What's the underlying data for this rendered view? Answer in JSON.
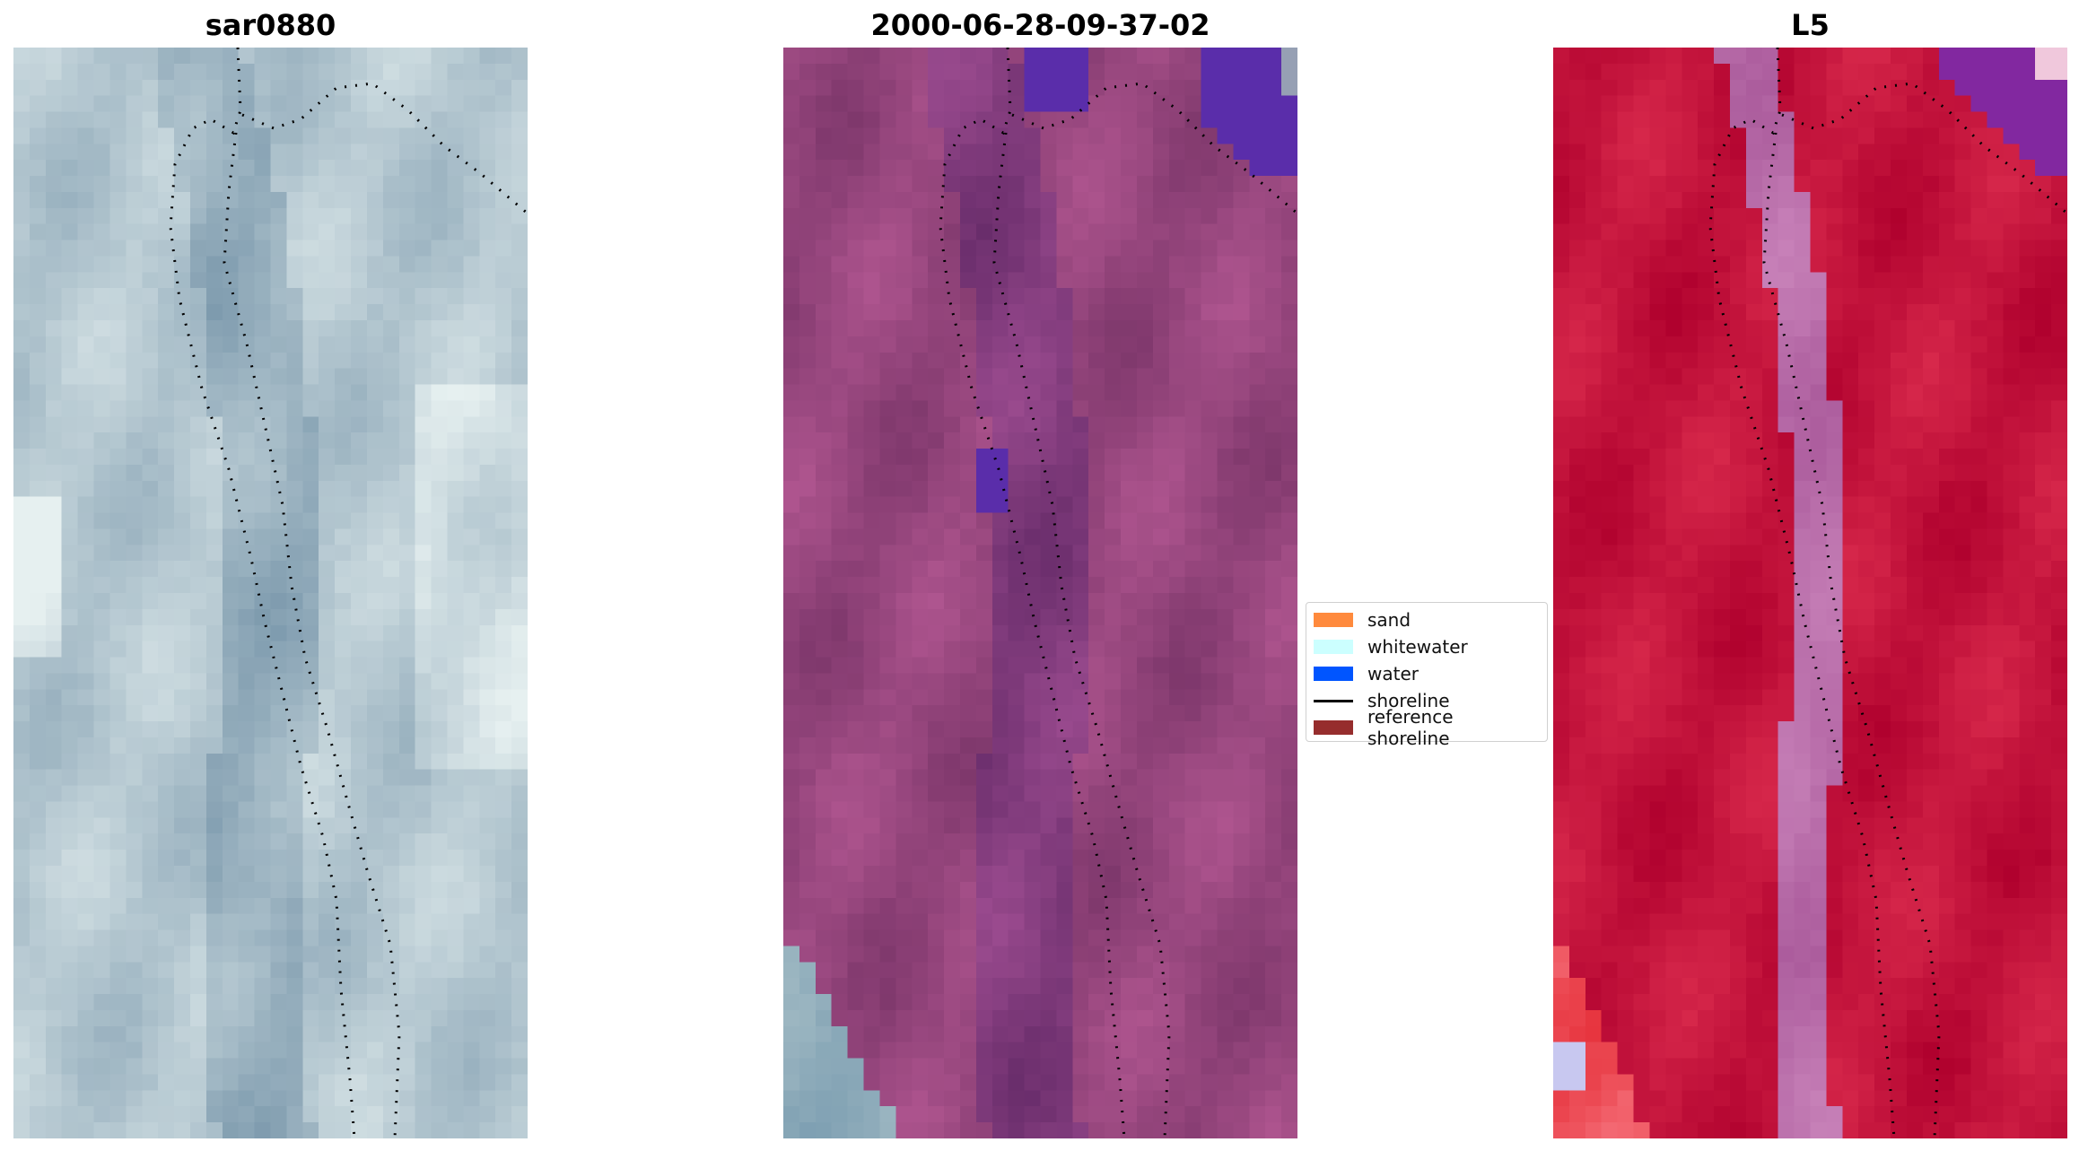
{
  "panels": [
    {
      "id": "p1",
      "title": "sar0880",
      "scheme": "rgb"
    },
    {
      "id": "p2",
      "title": "2000-06-28-09-37-02",
      "scheme": "classified"
    },
    {
      "id": "p3",
      "title": "L5",
      "scheme": "index"
    }
  ],
  "legend": {
    "items": [
      {
        "label": "sand",
        "kind": "patch",
        "color": "#ff8a3d"
      },
      {
        "label": "whitewater",
        "kind": "patch",
        "color": "#ccffff"
      },
      {
        "label": "water",
        "kind": "patch",
        "color": "#0055ff"
      },
      {
        "label": "shoreline",
        "kind": "line",
        "color": "#000000"
      },
      {
        "label": "reference shoreline",
        "kind": "patch",
        "color": "#962d2d"
      }
    ]
  }
}
